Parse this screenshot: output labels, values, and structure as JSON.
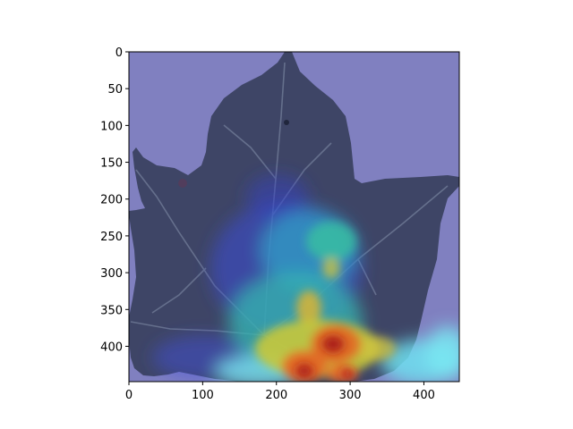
{
  "figure": {
    "background": "#ffffff",
    "axis_color": "#000000"
  },
  "image": {
    "subject": "leaf with heatmap overlay",
    "overlay_colormap": "jet",
    "tint_color": "#8080c0"
  },
  "axes": {
    "x_ticks": [
      {
        "value": 0,
        "label": "0"
      },
      {
        "value": 100,
        "label": "100"
      },
      {
        "value": 200,
        "label": "200"
      },
      {
        "value": 300,
        "label": "300"
      },
      {
        "value": 400,
        "label": "400"
      }
    ],
    "y_ticks": [
      {
        "value": 0,
        "label": "0"
      },
      {
        "value": 50,
        "label": "50"
      },
      {
        "value": 100,
        "label": "100"
      },
      {
        "value": 150,
        "label": "150"
      },
      {
        "value": 200,
        "label": "200"
      },
      {
        "value": 250,
        "label": "250"
      },
      {
        "value": 300,
        "label": "300"
      },
      {
        "value": 350,
        "label": "350"
      },
      {
        "value": 400,
        "label": "400"
      }
    ],
    "xlim": [
      0,
      448
    ],
    "ylim": [
      448,
      0
    ],
    "y_inverted": true
  }
}
